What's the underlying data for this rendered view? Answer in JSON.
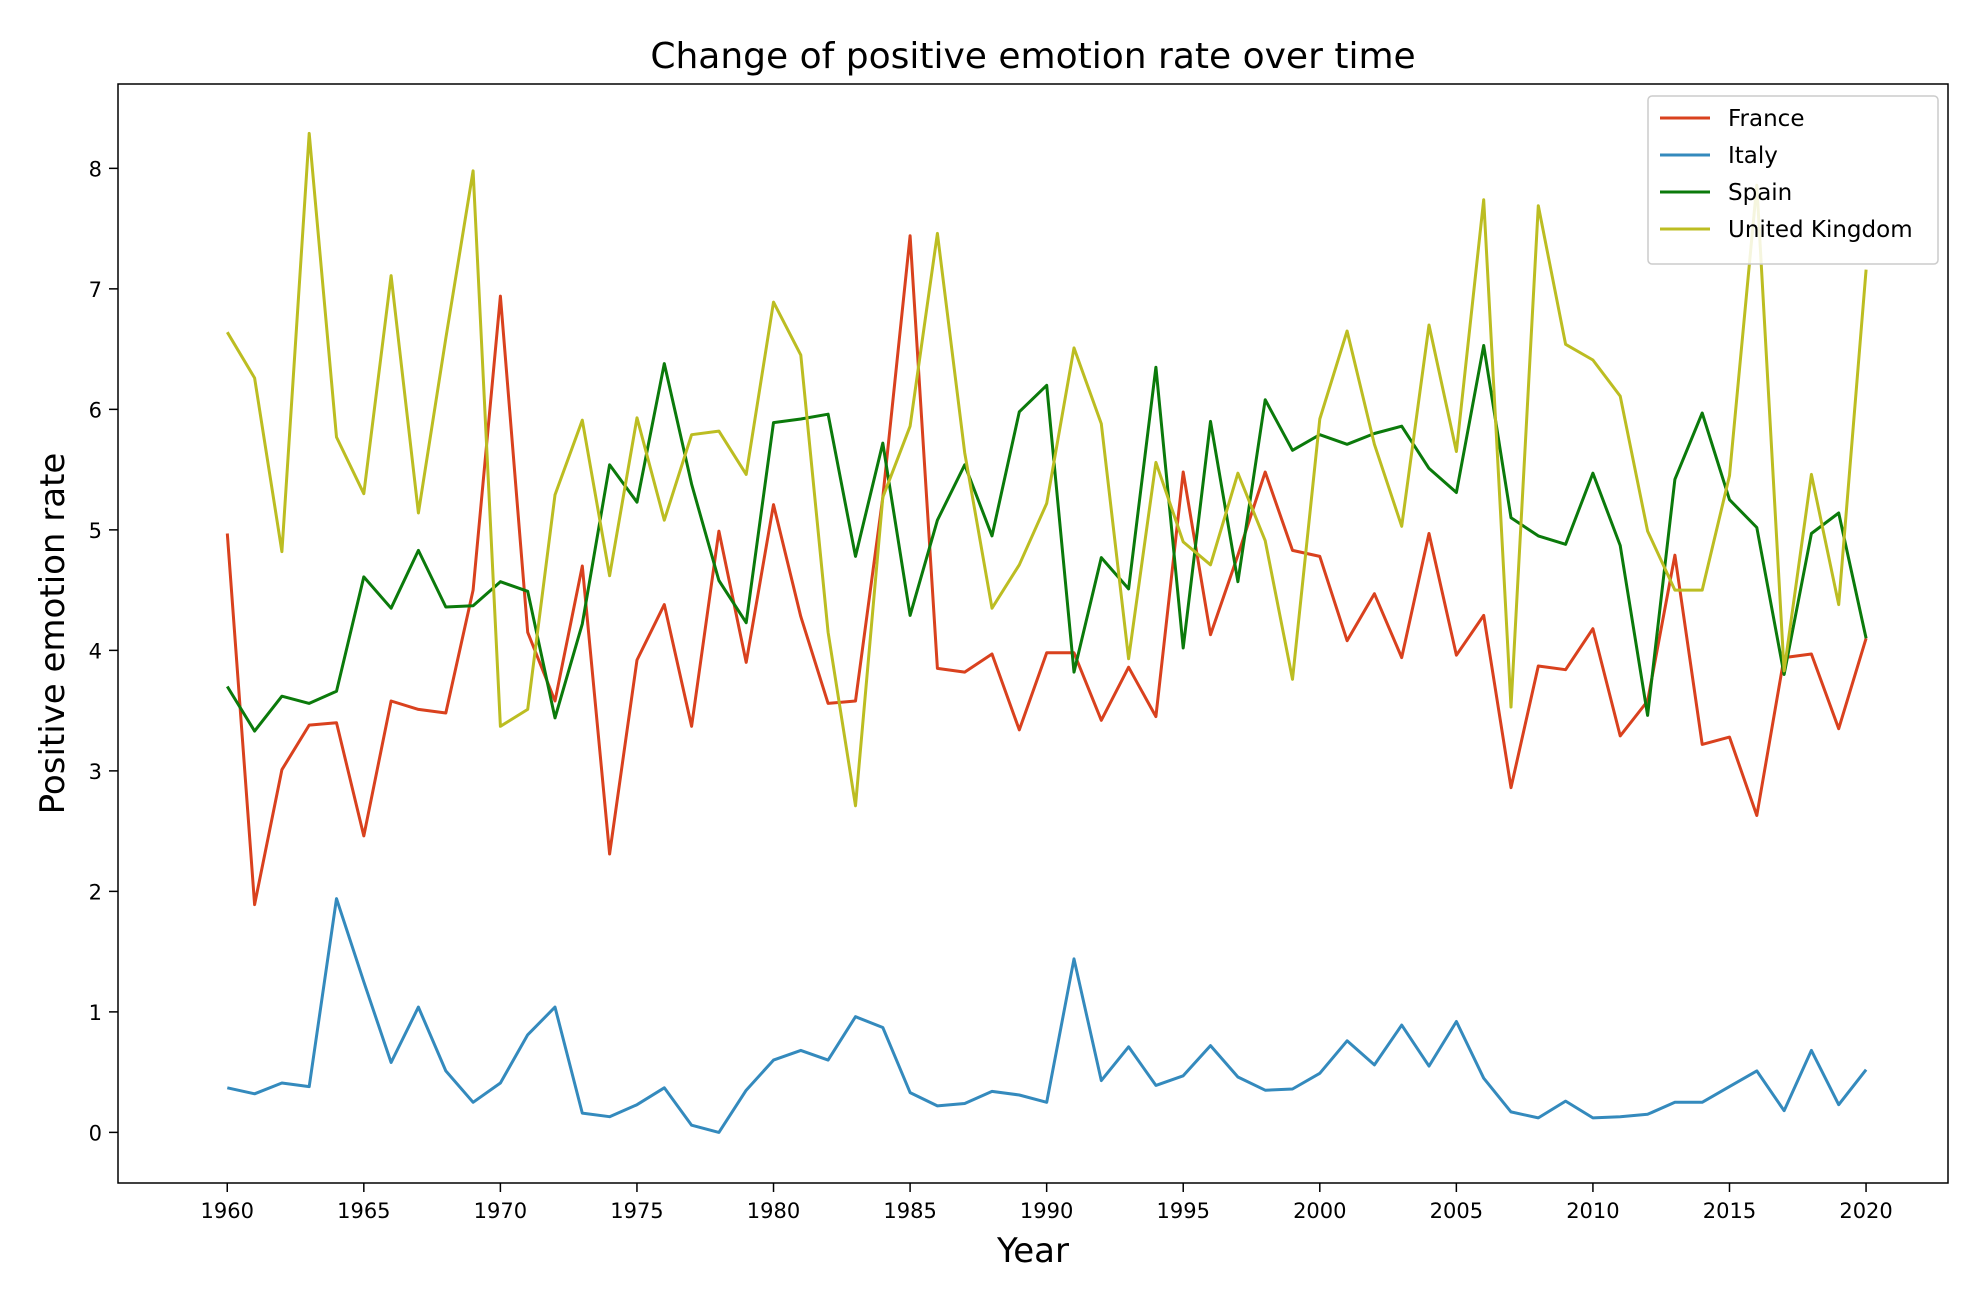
{
  "chart_data": {
    "type": "line",
    "title": "Change of positive emotion rate over time",
    "xlabel": "Year",
    "ylabel": "Positive emotion rate",
    "xlim": [
      1956,
      2023
    ],
    "ylim": [
      -0.42,
      8.7
    ],
    "x_ticks": [
      1960,
      1965,
      1970,
      1975,
      1980,
      1985,
      1990,
      1995,
      2000,
      2005,
      2010,
      2015,
      2020
    ],
    "y_ticks": [
      0,
      1,
      2,
      3,
      4,
      5,
      6,
      7,
      8
    ],
    "grid": false,
    "legend_position": "top-right",
    "x": [
      1960,
      1961,
      1962,
      1963,
      1964,
      1965,
      1966,
      1967,
      1968,
      1969,
      1970,
      1971,
      1972,
      1973,
      1974,
      1975,
      1976,
      1977,
      1978,
      1979,
      1980,
      1981,
      1982,
      1983,
      1984,
      1985,
      1986,
      1987,
      1988,
      1989,
      1990,
      1991,
      1992,
      1993,
      1994,
      1995,
      1996,
      1997,
      1998,
      1999,
      2000,
      2001,
      2002,
      2003,
      2004,
      2005,
      2006,
      2007,
      2008,
      2009,
      2010,
      2011,
      2012,
      2013,
      2014,
      2015,
      2016,
      2017,
      2018,
      2019,
      2020
    ],
    "series": [
      {
        "name": "France",
        "color": "#d9411e",
        "values": [
          4.97,
          1.89,
          3.01,
          3.38,
          3.4,
          2.46,
          3.58,
          3.51,
          3.48,
          4.5,
          6.94,
          4.15,
          3.58,
          4.7,
          2.31,
          3.92,
          4.38,
          3.37,
          4.99,
          3.9,
          5.21,
          4.28,
          3.56,
          3.58,
          5.27,
          7.44,
          3.85,
          3.82,
          3.97,
          3.34,
          3.98,
          3.98,
          3.42,
          3.86,
          3.45,
          5.48,
          4.13,
          4.79,
          5.48,
          4.83,
          4.78,
          4.08,
          4.47,
          3.94,
          4.97,
          3.96,
          4.29,
          2.86,
          3.87,
          3.84,
          4.18,
          3.29,
          3.58,
          4.79,
          3.22,
          3.28,
          2.63,
          3.94,
          3.97,
          3.35,
          4.1
        ]
      },
      {
        "name": "Italy",
        "color": "#348abd",
        "values": [
          0.37,
          0.32,
          0.41,
          0.38,
          1.94,
          1.25,
          0.58,
          1.04,
          0.51,
          0.25,
          0.41,
          0.81,
          1.04,
          0.16,
          0.13,
          0.23,
          0.37,
          0.06,
          0.0,
          0.35,
          0.6,
          0.68,
          0.6,
          0.96,
          0.87,
          0.33,
          0.22,
          0.24,
          0.34,
          0.31,
          0.25,
          1.44,
          0.43,
          0.71,
          0.39,
          0.47,
          0.72,
          0.46,
          0.35,
          0.36,
          0.49,
          0.76,
          0.56,
          0.89,
          0.55,
          0.92,
          0.45,
          0.17,
          0.12,
          0.26,
          0.12,
          0.13,
          0.15,
          0.25,
          0.25,
          0.38,
          0.51,
          0.18,
          0.68,
          0.23,
          0.52
        ]
      },
      {
        "name": "Spain",
        "color": "#0b7a0b",
        "values": [
          3.7,
          3.33,
          3.62,
          3.56,
          3.66,
          4.61,
          4.35,
          4.83,
          4.36,
          4.37,
          4.57,
          4.49,
          3.44,
          4.22,
          5.54,
          5.23,
          6.38,
          5.38,
          4.58,
          4.23,
          5.89,
          5.92,
          5.96,
          4.78,
          5.72,
          4.29,
          5.08,
          5.54,
          4.95,
          5.98,
          6.2,
          3.82,
          4.77,
          4.51,
          6.35,
          4.02,
          5.9,
          4.57,
          6.08,
          5.66,
          5.79,
          5.71,
          5.8,
          5.86,
          5.51,
          5.31,
          6.53,
          5.1,
          4.95,
          4.88,
          5.47,
          4.87,
          3.46,
          5.42,
          5.97,
          5.25,
          5.02,
          3.8,
          4.97,
          5.14,
          4.1
        ]
      },
      {
        "name": "United Kingdom",
        "color": "#bcbd22",
        "values": [
          6.64,
          6.26,
          4.82,
          8.29,
          5.77,
          5.3,
          7.11,
          5.14,
          6.59,
          7.98,
          3.37,
          3.51,
          5.29,
          5.91,
          4.62,
          5.93,
          5.08,
          5.79,
          5.82,
          5.46,
          6.89,
          6.45,
          4.15,
          2.71,
          5.27,
          5.86,
          7.46,
          5.64,
          4.35,
          4.71,
          5.22,
          6.51,
          5.88,
          3.93,
          5.56,
          4.9,
          4.71,
          5.47,
          4.91,
          3.76,
          5.92,
          6.65,
          5.71,
          5.03,
          6.7,
          5.65,
          7.74,
          3.53,
          7.69,
          6.54,
          6.41,
          6.11,
          4.99,
          4.5,
          4.5,
          5.45,
          7.86,
          3.83,
          5.46,
          4.38,
          7.16
        ]
      }
    ]
  }
}
